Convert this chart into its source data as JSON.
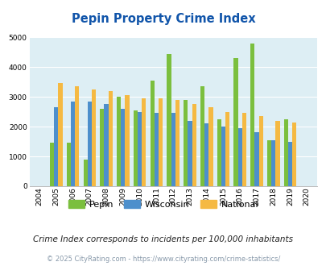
{
  "title": "Pepin Property Crime Index",
  "years": [
    2004,
    2005,
    2006,
    2007,
    2008,
    2009,
    2010,
    2011,
    2012,
    2013,
    2014,
    2015,
    2016,
    2017,
    2018,
    2019,
    2020
  ],
  "pepin": [
    0,
    1450,
    1450,
    900,
    2600,
    3000,
    2550,
    3550,
    4450,
    2900,
    3350,
    2250,
    4300,
    4800,
    1550,
    2250,
    0
  ],
  "wisconsin": [
    0,
    2650,
    2850,
    2850,
    2750,
    2600,
    2500,
    2450,
    2450,
    2200,
    2100,
    2000,
    1950,
    1800,
    1550,
    1500,
    0
  ],
  "national": [
    0,
    3450,
    3350,
    3250,
    3200,
    3050,
    2950,
    2950,
    2900,
    2750,
    2650,
    2500,
    2450,
    2350,
    2200,
    2150,
    0
  ],
  "pepin_color": "#7bbf3e",
  "wisconsin_color": "#4d8fcc",
  "national_color": "#f5b942",
  "bg_color": "#ddeef4",
  "ylim": [
    0,
    5000
  ],
  "yticks": [
    0,
    1000,
    2000,
    3000,
    4000,
    5000
  ],
  "subtitle": "Crime Index corresponds to incidents per 100,000 inhabitants",
  "footer": "© 2025 CityRating.com - https://www.cityrating.com/crime-statistics/",
  "title_color": "#1155aa",
  "subtitle_color": "#222222",
  "footer_color": "#8899aa"
}
